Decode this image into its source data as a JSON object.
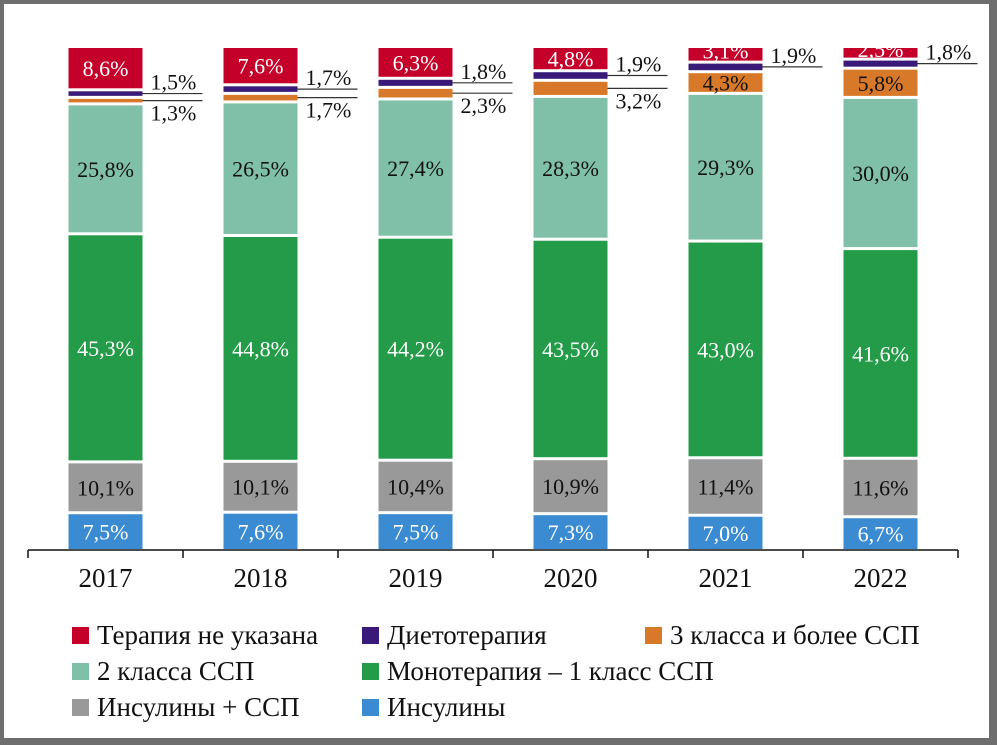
{
  "chart_data": {
    "type": "bar",
    "stacked": true,
    "title": "",
    "xlabel": "",
    "ylabel": "",
    "ylim": [
      0,
      100
    ],
    "grid": false,
    "legend_position": "bottom",
    "categories": [
      "2017",
      "2018",
      "2019",
      "2020",
      "2021",
      "2022"
    ],
    "series": [
      {
        "name": "Инсулины",
        "color": "#3a8bd1",
        "label_color": "#ffffff",
        "values": [
          7.5,
          7.6,
          7.5,
          7.3,
          7.0,
          6.7
        ],
        "labels": [
          "7,5%",
          "7,6%",
          "7,5%",
          "7,3%",
          "7,0%",
          "6,7%"
        ]
      },
      {
        "name": "Инсулины + ССП",
        "color": "#999999",
        "label_color": "#111111",
        "values": [
          10.1,
          10.1,
          10.4,
          10.9,
          11.4,
          11.6
        ],
        "labels": [
          "10,1%",
          "10,1%",
          "10,4%",
          "10,9%",
          "11,4%",
          "11,6%"
        ]
      },
      {
        "name": "Монотерапия – 1 класс ССП",
        "color": "#239b48",
        "label_color": "#ffffff",
        "values": [
          45.3,
          44.8,
          44.2,
          43.5,
          43.0,
          41.6
        ],
        "labels": [
          "45,3%",
          "44,8%",
          "44,2%",
          "43,5%",
          "43,0%",
          "41,6%"
        ]
      },
      {
        "name": "2 класса ССП",
        "color": "#80bfa8",
        "label_color": "#111111",
        "values": [
          25.8,
          26.5,
          27.4,
          28.3,
          29.3,
          30.0
        ],
        "labels": [
          "25,8%",
          "26,5%",
          "27,4%",
          "28,3%",
          "29,3%",
          "30,0%"
        ]
      },
      {
        "name": "3 класса и более ССП",
        "color": "#d8792a",
        "label_color": "#111111",
        "values": [
          1.3,
          1.7,
          2.3,
          3.2,
          4.3,
          5.8
        ],
        "labels": [
          "1,3%",
          "1,7%",
          "2,3%",
          "3,2%",
          "4,3%",
          "5,8%"
        ],
        "label_outside": [
          true,
          true,
          true,
          true,
          false,
          false
        ]
      },
      {
        "name": "Диетотерапия",
        "color": "#3a1a78",
        "label_color": "#111111",
        "values": [
          1.5,
          1.7,
          1.8,
          1.9,
          1.9,
          1.8
        ],
        "labels": [
          "1,5%",
          "1,7%",
          "1,8%",
          "1,9%",
          "1,9%",
          "1,8%"
        ],
        "label_outside": [
          true,
          true,
          true,
          true,
          true,
          true
        ]
      },
      {
        "name": "Терапия не указана",
        "color": "#c4002a",
        "label_color": "#ffffff",
        "values": [
          8.6,
          7.6,
          6.3,
          4.8,
          3.1,
          2.5
        ],
        "labels": [
          "8,6%",
          "7,6%",
          "6,3%",
          "4,8%",
          "3,1%",
          "2,5%"
        ]
      }
    ],
    "legend": [
      {
        "name": "Терапия не указана",
        "color": "#c4002a"
      },
      {
        "name": "Диетотерапия",
        "color": "#3a1a78"
      },
      {
        "name": "3 класса и более ССП",
        "color": "#d8792a"
      },
      {
        "name": "2 класса ССП",
        "color": "#80bfa8"
      },
      {
        "name": "Монотерапия – 1 класс ССП",
        "color": "#239b48"
      },
      {
        "name": "Инсулины + ССП",
        "color": "#999999"
      },
      {
        "name": "Инсулины",
        "color": "#3a8bd1"
      }
    ]
  }
}
